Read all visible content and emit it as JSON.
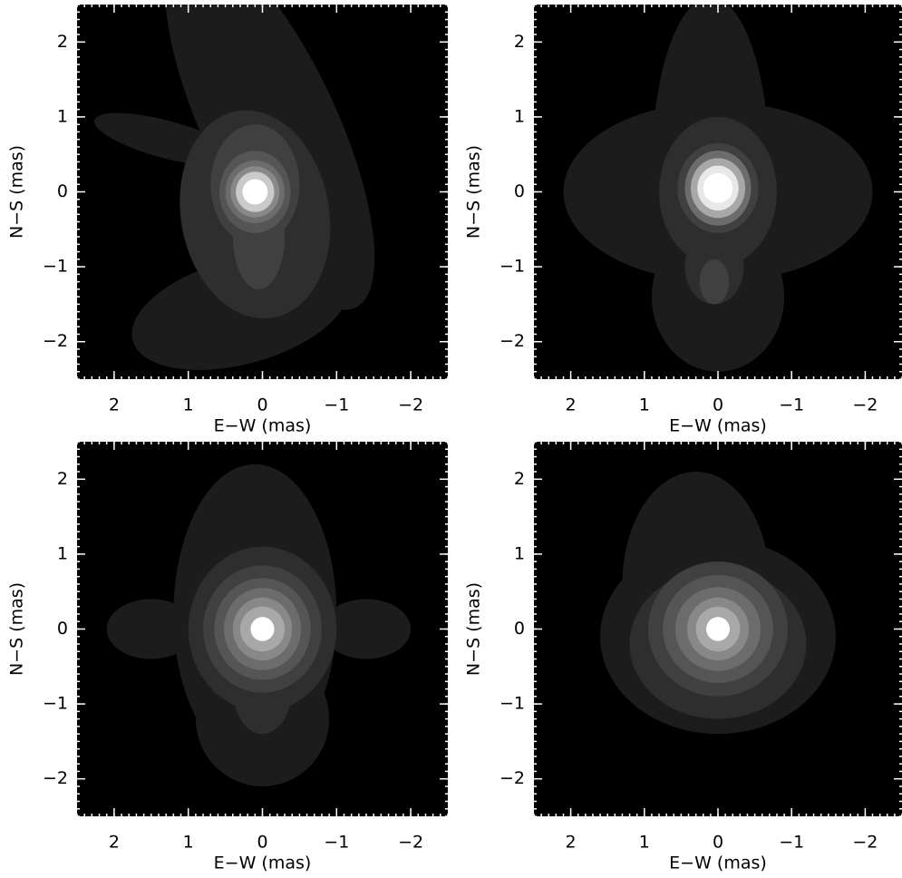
{
  "chart_data": [
    {
      "type": "image",
      "xlabel": "E−W (mas)",
      "ylabel": "N−S (mas)",
      "xlim": [
        2.5,
        -2.5
      ],
      "ylim": [
        -2.5,
        2.5
      ],
      "xticks": [
        2,
        1,
        0,
        {
          "value": -1,
          "label": "−1"
        },
        {
          "value": -2,
          "label": "−2"
        }
      ],
      "yticks": [
        {
          "value": -2,
          "label": "−2"
        },
        {
          "value": -1,
          "label": "−1"
        },
        0,
        1,
        2
      ]
    },
    {
      "type": "image",
      "xlabel": "E−W (mas)",
      "ylabel": "N−S (mas)",
      "xlim": [
        2.5,
        -2.5
      ],
      "ylim": [
        -2.5,
        2.5
      ],
      "xticks": [
        2,
        1,
        0,
        {
          "value": -1,
          "label": "−1"
        },
        {
          "value": -2,
          "label": "−2"
        }
      ],
      "yticks": [
        {
          "value": -2,
          "label": "−2"
        },
        {
          "value": -1,
          "label": "−1"
        },
        0,
        1,
        2
      ]
    },
    {
      "type": "image",
      "xlabel": "E−W (mas)",
      "ylabel": "N−S (mas)",
      "xlim": [
        2.5,
        -2.5
      ],
      "ylim": [
        -2.5,
        2.5
      ],
      "xticks": [
        2,
        1,
        0,
        {
          "value": -1,
          "label": "−1"
        },
        {
          "value": -2,
          "label": "−2"
        }
      ],
      "yticks": [
        {
          "value": -2,
          "label": "−2"
        },
        {
          "value": -1,
          "label": "−1"
        },
        0,
        1,
        2
      ]
    },
    {
      "type": "image",
      "xlabel": "E−W (mas)",
      "ylabel": "N−S (mas)",
      "xlim": [
        2.5,
        -2.5
      ],
      "ylim": [
        -2.5,
        2.5
      ],
      "xticks": [
        2,
        1,
        0,
        {
          "value": -1,
          "label": "−1"
        },
        {
          "value": -2,
          "label": "−2"
        }
      ],
      "yticks": [
        {
          "value": -2,
          "label": "−2"
        },
        {
          "value": -1,
          "label": "−1"
        },
        0,
        1,
        2
      ]
    }
  ]
}
